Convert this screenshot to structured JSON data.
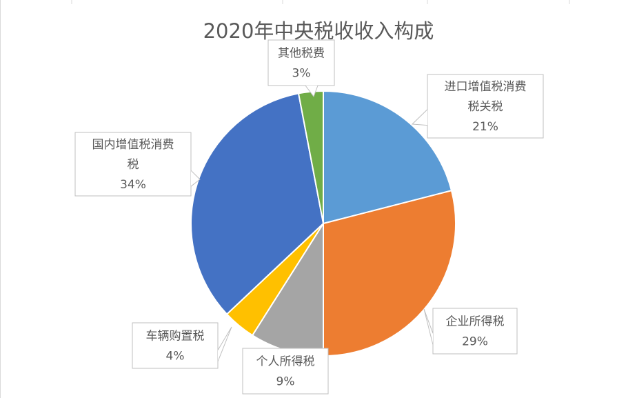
{
  "chart_data": {
    "type": "pie",
    "title": "2020年中央税收收入构成",
    "slices": [
      {
        "label_lines": [
          "进口增值税消费",
          "税关税"
        ],
        "value_text": "21%",
        "value": 21,
        "color": "#5B9BD5"
      },
      {
        "label_lines": [
          "企业所得税"
        ],
        "value_text": "29%",
        "value": 29,
        "color": "#ED7D31"
      },
      {
        "label_lines": [
          "个人所得税"
        ],
        "value_text": "9%",
        "value": 9,
        "color": "#A5A5A5"
      },
      {
        "label_lines": [
          "车辆购置税"
        ],
        "value_text": "4%",
        "value": 4,
        "color": "#FFC000"
      },
      {
        "label_lines": [
          "国内增值税消费",
          "税"
        ],
        "value_text": "34%",
        "value": 34,
        "color": "#4472C4"
      },
      {
        "label_lines": [
          "其他税费"
        ],
        "value_text": "3%",
        "value": 3,
        "color": "#70AD47"
      }
    ]
  }
}
